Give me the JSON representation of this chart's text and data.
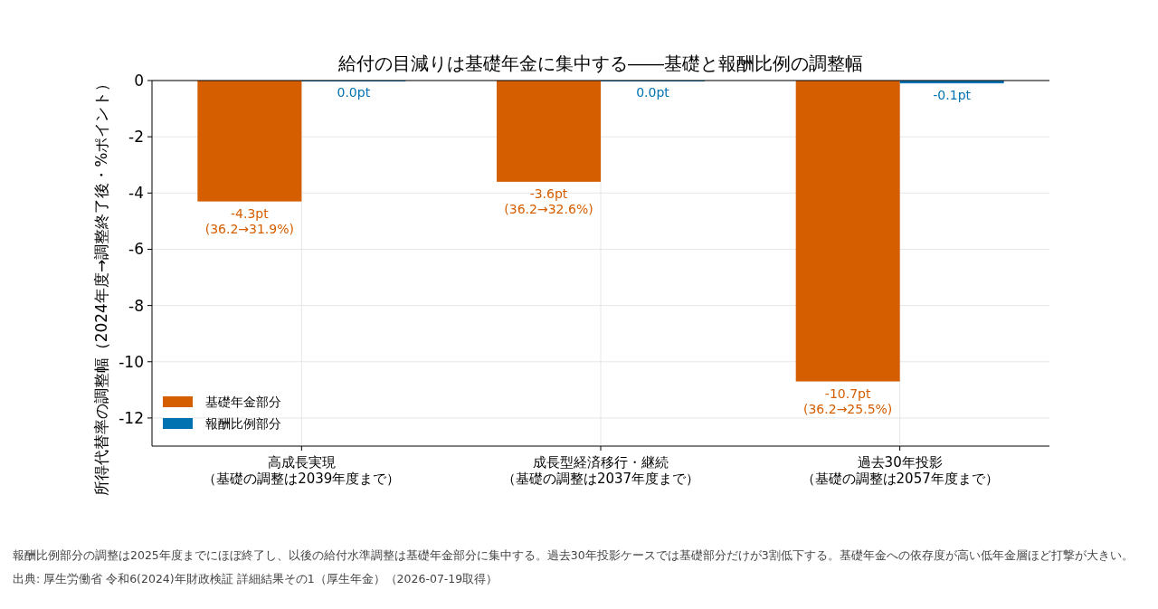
{
  "chart_data": {
    "type": "bar",
    "title": "給付の目減りは基礎年金に集中する――基礎と報酬比例の調整幅",
    "ylabel": "所得代替率の調整幅（2024年度→調整終了後・%ポイント）",
    "categories": [
      "高成長実現（基礎の調整は2039年度まで）",
      "成長型経済移行・継続（基礎の調整は2037年度まで）",
      "過去30年投影（基礎の調整は2057年度まで）"
    ],
    "series": [
      {
        "name": "基礎年金部分",
        "color": "#d55e00",
        "values": [
          -4.3,
          -3.6,
          -10.7
        ],
        "value_labels": [
          "-4.3pt\n(36.2→31.9%)",
          "-3.6pt\n(36.2→32.6%)",
          "-10.7pt\n(36.2→25.5%)"
        ]
      },
      {
        "name": "報酬比例部分",
        "color": "#0072b2",
        "values": [
          0.0,
          0.0,
          -0.1
        ],
        "value_labels": [
          "0.0pt",
          "0.0pt",
          "-0.1pt"
        ]
      }
    ],
    "ylim": [
      -13,
      0
    ],
    "yticks": [
      -12,
      -10,
      -8,
      -6,
      -4,
      -2,
      0
    ],
    "grid": true,
    "legend": "bottom left",
    "annotations": [
      "報酬比例部分の調整は2025年度までにほぼ終了し、以後の給付水準調整は基礎年金部分に集中する。過去30年投影ケースでは基礎部分だけが3割低下する。基礎年金への依存度が高い低年金層ほど打撃が大きい。",
      "出典: 厚生労働省 令和6(2024)年財政検証 詳細結果その1（厚生年金）（2026-07-19取得）"
    ]
  }
}
